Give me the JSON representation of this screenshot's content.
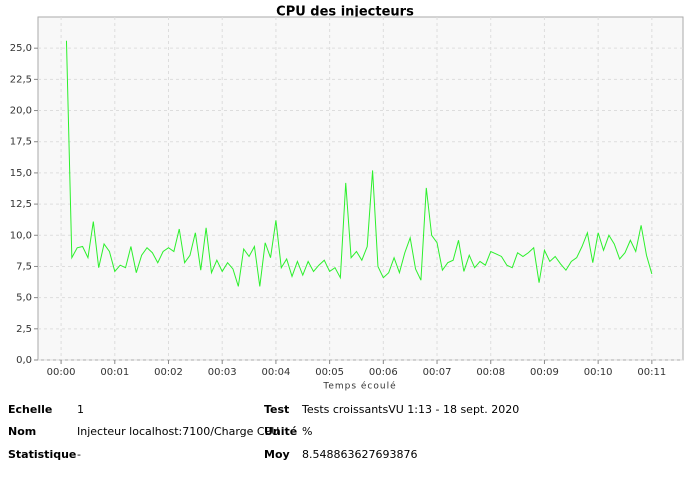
{
  "chart_data": {
    "type": "line",
    "title": "CPU des injecteurs",
    "x_label": "Temps écoulé",
    "color": "#2cf02c",
    "grid": true,
    "x": [
      0.1,
      0.2,
      0.3,
      0.4,
      0.5,
      0.6,
      0.7,
      0.8,
      0.9,
      1.0,
      1.1,
      1.2,
      1.3,
      1.4,
      1.5,
      1.6,
      1.7,
      1.8,
      1.9,
      2.0,
      2.1,
      2.2,
      2.3,
      2.4,
      2.5,
      2.6,
      2.7,
      2.8,
      2.9,
      3.0,
      3.1,
      3.2,
      3.3,
      3.4,
      3.5,
      3.6,
      3.7,
      3.8,
      3.9,
      4.0,
      4.1,
      4.2,
      4.3,
      4.4,
      4.5,
      4.6,
      4.7,
      4.8,
      4.9,
      5.0,
      5.1,
      5.2,
      5.3,
      5.4,
      5.5,
      5.6,
      5.7,
      5.8,
      5.9,
      6.0,
      6.1,
      6.2,
      6.3,
      6.4,
      6.5,
      6.6,
      6.7,
      6.8,
      6.9,
      7.0,
      7.1,
      7.2,
      7.3,
      7.4,
      7.5,
      7.6,
      7.7,
      7.8,
      7.9,
      8.0,
      8.1,
      8.2,
      8.3,
      8.4,
      8.5,
      8.6,
      8.7,
      8.8,
      8.9,
      9.0,
      9.1,
      9.2,
      9.3,
      9.4,
      9.5,
      9.6,
      9.7,
      9.8,
      9.9,
      10.0,
      10.1,
      10.2,
      10.3,
      10.4,
      10.5,
      10.6,
      10.7,
      10.8,
      10.9,
      11.0
    ],
    "values": [
      25.6,
      8.2,
      9.0,
      9.1,
      8.2,
      11.1,
      7.4,
      9.3,
      8.7,
      7.1,
      7.6,
      7.4,
      9.1,
      7.0,
      8.4,
      9.0,
      8.6,
      7.8,
      8.7,
      9.0,
      8.7,
      10.5,
      7.8,
      8.4,
      10.2,
      7.2,
      10.6,
      7.0,
      8.0,
      7.1,
      7.8,
      7.3,
      5.9,
      8.9,
      8.3,
      9.1,
      5.9,
      9.4,
      8.2,
      11.2,
      7.4,
      8.1,
      6.7,
      7.9,
      6.8,
      7.9,
      7.1,
      7.6,
      8.0,
      7.1,
      7.4,
      6.6,
      14.2,
      8.2,
      8.7,
      8.0,
      9.1,
      15.2,
      7.5,
      6.6,
      7.0,
      8.2,
      7.0,
      8.6,
      9.8,
      7.3,
      6.4,
      13.8,
      10.0,
      9.4,
      7.2,
      7.8,
      8.0,
      9.6,
      7.1,
      8.4,
      7.4,
      7.9,
      7.6,
      8.7,
      8.5,
      8.3,
      7.6,
      7.4,
      8.6,
      8.3,
      8.6,
      9.0,
      6.2,
      8.8,
      7.9,
      8.3,
      7.7,
      7.2,
      7.9,
      8.2,
      9.1,
      10.2,
      7.8,
      10.2,
      8.8,
      10.0,
      9.3,
      8.1,
      8.6,
      9.6,
      8.7,
      10.8,
      8.4,
      6.9
    ],
    "xlim": [
      -0.43,
      11.58
    ],
    "xticks": [
      {
        "value": 0,
        "label": "00:00"
      },
      {
        "value": 1,
        "label": "00:01"
      },
      {
        "value": 2,
        "label": "00:02"
      },
      {
        "value": 3,
        "label": "00:03"
      },
      {
        "value": 4,
        "label": "00:04"
      },
      {
        "value": 5,
        "label": "00:05"
      },
      {
        "value": 6,
        "label": "00:06"
      },
      {
        "value": 7,
        "label": "00:07"
      },
      {
        "value": 8,
        "label": "00:08"
      },
      {
        "value": 9,
        "label": "00:09"
      },
      {
        "value": 10,
        "label": "00:10"
      },
      {
        "value": 11,
        "label": "00:11"
      }
    ],
    "ylim": [
      0,
      27.5
    ],
    "yticks": [
      {
        "value": 0,
        "label": "0,0"
      },
      {
        "value": 2.5,
        "label": "2,5"
      },
      {
        "value": 5,
        "label": "5,0"
      },
      {
        "value": 7.5,
        "label": "7,5"
      },
      {
        "value": 10,
        "label": "10,0"
      },
      {
        "value": 12.5,
        "label": "12,5"
      },
      {
        "value": 15,
        "label": "15,0"
      },
      {
        "value": 17.5,
        "label": "17,5"
      },
      {
        "value": 20,
        "label": "20,0"
      },
      {
        "value": 22.5,
        "label": "22,5"
      },
      {
        "value": 25,
        "label": "25,0"
      }
    ]
  },
  "info": {
    "rows": [
      [
        "Echelle",
        "1",
        "Test",
        "Tests croissantsVU 1:13 - 18 sept. 2020"
      ],
      [
        "Nom",
        "Injecteur localhost:7100/Charge CPU",
        "Unité",
        "%"
      ],
      [
        "Statistique",
        "-",
        "Moy",
        "8.548863627693876"
      ]
    ]
  }
}
